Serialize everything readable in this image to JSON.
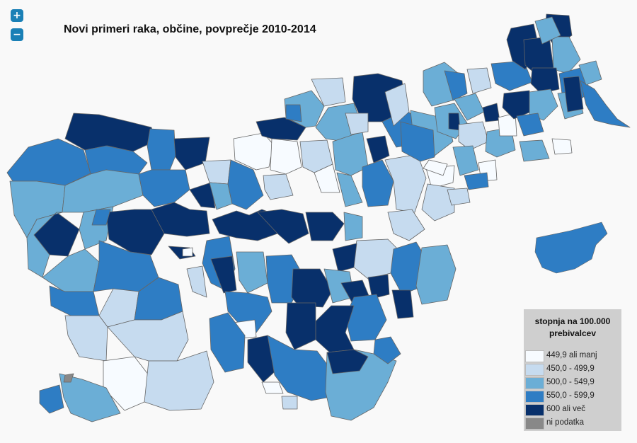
{
  "controls": {
    "zoom_in": "+",
    "zoom_out": "−"
  },
  "map": {
    "title": "Novi primeri raka, občine, povprečje 2010-2014",
    "colors": {
      "c1": "#f7fbff",
      "c2": "#c6dbef",
      "c3": "#6baed6",
      "c4": "#2e7dc4",
      "c5": "#08306b",
      "nodata": "#888888",
      "border": "#666666"
    }
  },
  "legend": {
    "title": "stopnja na 100.000 prebivalcev",
    "items": [
      {
        "label": "449,9 ali manj",
        "color": "#f7fbff"
      },
      {
        "label": "450,0 - 499,9",
        "color": "#c6dbef"
      },
      {
        "label": "500,0 - 549,9",
        "color": "#6baed6"
      },
      {
        "label": "550,0 - 599,9",
        "color": "#2e7dc4"
      },
      {
        "label": "600 ali več",
        "color": "#08306b"
      },
      {
        "label": "ni podatka",
        "color": "#888888"
      }
    ]
  }
}
